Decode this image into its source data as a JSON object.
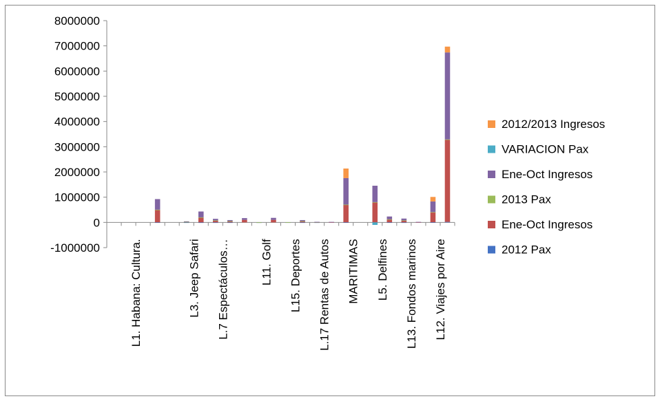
{
  "chart_data": {
    "type": "bar",
    "stacked": true,
    "ylim": [
      -1000000,
      8000000
    ],
    "yticks": [
      "8000000",
      "7000000",
      "6000000",
      "5000000",
      "4000000",
      "3000000",
      "2000000",
      "1000000",
      "0",
      "-1000000"
    ],
    "yticks_values": [
      8000000,
      7000000,
      6000000,
      5000000,
      4000000,
      3000000,
      2000000,
      1000000,
      0,
      -1000000
    ],
    "grid": false,
    "legend_position": "right",
    "categories_shown": [
      "L1. Habana: Cultura.",
      "L3. Jeep Safari",
      "L.7 Espectáculos…",
      "L11. Golf",
      "L15. Deportes",
      "L.17 Rentas de Autos",
      "MARITIMAS",
      "L5. Delfines",
      "L13. Fondos marinos",
      "L12. Viajes por Aire"
    ],
    "category_count": 24,
    "series": [
      {
        "name": "2012 Pax",
        "color": "#4472C4",
        "values": [
          0,
          0,
          0,
          2000,
          0,
          1000,
          1000,
          1000,
          1000,
          0,
          1000,
          0,
          2000,
          1000,
          1000,
          0,
          3000,
          0,
          2000,
          2000,
          1000,
          0,
          5000,
          20000
        ]
      },
      {
        "name": "Ene-Oct Ingresos",
        "color": "#C0504D",
        "values": [
          0,
          0,
          0,
          500000,
          0,
          20000,
          200000,
          80000,
          50000,
          100000,
          0,
          100000,
          0,
          50000,
          10000,
          10000,
          700000,
          0,
          800000,
          120000,
          80000,
          10000,
          400000,
          3250000
        ]
      },
      {
        "name": "2013 Pax",
        "color": "#9BBB59",
        "values": [
          0,
          0,
          0,
          2000,
          0,
          1000,
          1000,
          1000,
          1000,
          0,
          1000,
          0,
          2000,
          1000,
          1000,
          0,
          3000,
          0,
          2000,
          2000,
          1000,
          0,
          5000,
          20000
        ]
      },
      {
        "name": "Ene-Oct Ingresos",
        "color": "#8064A2",
        "values": [
          0,
          0,
          0,
          420000,
          0,
          20000,
          230000,
          60000,
          40000,
          70000,
          0,
          80000,
          0,
          40000,
          10000,
          10000,
          1050000,
          0,
          650000,
          110000,
          70000,
          10000,
          420000,
          3450000
        ]
      },
      {
        "name": "VARIACION Pax",
        "color": "#4BACC6",
        "values": [
          0,
          0,
          0,
          0,
          0,
          0,
          0,
          0,
          0,
          0,
          0,
          0,
          0,
          0,
          0,
          0,
          0,
          0,
          -100000,
          0,
          0,
          0,
          0,
          0
        ]
      },
      {
        "name": "2012/2013 Ingresos",
        "color": "#F79646",
        "values": [
          0,
          0,
          0,
          0,
          0,
          0,
          0,
          0,
          0,
          0,
          0,
          0,
          0,
          0,
          0,
          0,
          380000,
          0,
          0,
          0,
          0,
          0,
          180000,
          230000
        ]
      }
    ],
    "legend_order": [
      "2012/2013 Ingresos",
      "VARIACION Pax",
      "Ene-Oct Ingresos",
      "2013 Pax",
      "Ene-Oct Ingresos",
      "2012 Pax"
    ]
  }
}
